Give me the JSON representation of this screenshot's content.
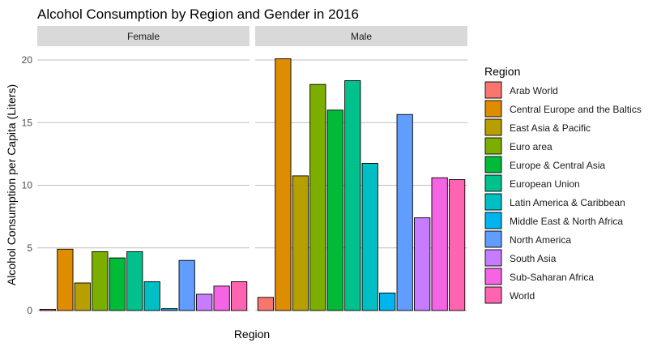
{
  "chart_data": {
    "type": "bar",
    "title": "Alcohol Consumption by Region and Gender in 2016",
    "xlabel": "Region",
    "ylabel": "Alcohol Consumption per Capita (Liters)",
    "ylim": [
      0,
      21
    ],
    "yticks": [
      0,
      5,
      10,
      15,
      20
    ],
    "grid": true,
    "legend_title": "Region",
    "legend_position": "right",
    "categories": [
      "Arab World",
      "Central Europe and the Baltics",
      "East Asia & Pacific",
      "Euro area",
      "Europe & Central Asia",
      "European Union",
      "Latin America & Caribbean",
      "Middle East & North Africa",
      "North America",
      "South Asia",
      "Sub-Saharan Africa",
      "World"
    ],
    "colors": [
      "#F8766D",
      "#DE8C00",
      "#B79F00",
      "#7CAE00",
      "#00BA38",
      "#00C08B",
      "#00BFC4",
      "#00B4F0",
      "#619CFF",
      "#C77CFF",
      "#F564E3",
      "#FF64B0"
    ],
    "facets": [
      {
        "label": "Female",
        "values": [
          0.1,
          4.9,
          2.2,
          4.7,
          4.2,
          4.7,
          2.3,
          0.15,
          4.0,
          1.3,
          1.95,
          2.3
        ]
      },
      {
        "label": "Male",
        "values": [
          1.05,
          20.1,
          10.75,
          18.05,
          16.0,
          18.35,
          11.75,
          1.4,
          15.65,
          7.4,
          10.6,
          10.45
        ]
      }
    ]
  }
}
